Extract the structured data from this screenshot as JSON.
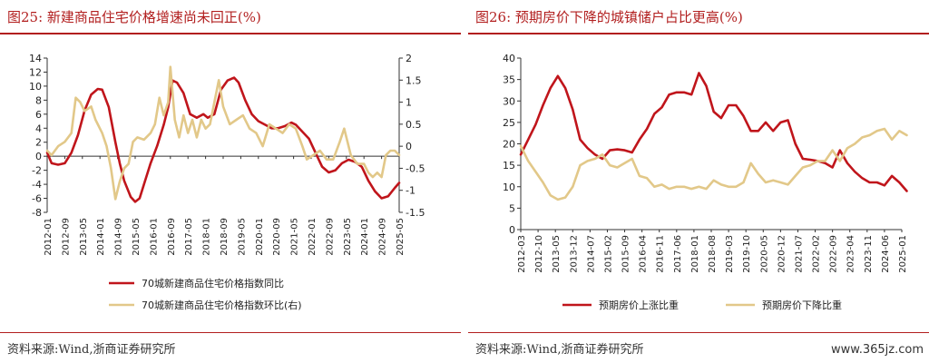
{
  "watermark": "www.365jz.com",
  "chart_data": [
    {
      "type": "line",
      "title": "图25:  新建商品住宅价格增速尚未回正(%)",
      "source": "资料来源:Wind,浙商证券研究所",
      "x": [
        "2012-01",
        "2012-09",
        "2013-05",
        "2014-01",
        "2014-09",
        "2015-05",
        "2016-01",
        "2016-09",
        "2017-05",
        "2018-01",
        "2018-09",
        "2019-05",
        "2020-01",
        "2020-09",
        "2021-05",
        "2022-01",
        "2022-09",
        "2023-05",
        "2024-01",
        "2024-09",
        "2025-05"
      ],
      "ylim_left": [
        -8,
        14
      ],
      "yticks_left": [
        "14",
        "12",
        "10",
        "8",
        "6",
        "4",
        "2",
        "0",
        "-2",
        "-4",
        "-6",
        "-8"
      ],
      "ylim_right": [
        -1.5,
        2
      ],
      "yticks_right": [
        "2",
        "1.5",
        "1",
        "0.5",
        "0",
        "-0.5",
        "-1",
        "-1.5"
      ],
      "colors": [
        "#c0151b",
        "#e2c889"
      ],
      "series": [
        {
          "name": "70城新建商品住宅价格指数同比",
          "axis": "left",
          "points": [
            [
              "2012-01",
              0.5
            ],
            [
              "2012-03",
              -1.0
            ],
            [
              "2012-06",
              -1.2
            ],
            [
              "2012-09",
              -1.0
            ],
            [
              "2012-12",
              0.5
            ],
            [
              "2013-03",
              3.0
            ],
            [
              "2013-06",
              6.5
            ],
            [
              "2013-09",
              8.8
            ],
            [
              "2013-12",
              9.6
            ],
            [
              "2014-02",
              9.5
            ],
            [
              "2014-05",
              7.0
            ],
            [
              "2014-08",
              2.0
            ],
            [
              "2014-10",
              -1.0
            ],
            [
              "2014-12",
              -3.5
            ],
            [
              "2015-03",
              -5.8
            ],
            [
              "2015-05",
              -6.5
            ],
            [
              "2015-07",
              -6.0
            ],
            [
              "2015-09",
              -4.0
            ],
            [
              "2015-12",
              -1.0
            ],
            [
              "2016-03",
              1.5
            ],
            [
              "2016-06",
              4.5
            ],
            [
              "2016-08",
              7.0
            ],
            [
              "2016-10",
              10.8
            ],
            [
              "2016-12",
              10.5
            ],
            [
              "2017-03",
              9.0
            ],
            [
              "2017-06",
              6.0
            ],
            [
              "2017-09",
              5.5
            ],
            [
              "2017-12",
              6.0
            ],
            [
              "2018-02",
              5.5
            ],
            [
              "2018-05",
              6.0
            ],
            [
              "2018-08",
              9.5
            ],
            [
              "2018-11",
              10.8
            ],
            [
              "2019-02",
              11.2
            ],
            [
              "2019-04",
              10.5
            ],
            [
              "2019-07",
              8.0
            ],
            [
              "2019-10",
              6.0
            ],
            [
              "2020-01",
              5.0
            ],
            [
              "2020-04",
              4.5
            ],
            [
              "2020-07",
              4.0
            ],
            [
              "2020-10",
              4.0
            ],
            [
              "2021-01",
              4.3
            ],
            [
              "2021-04",
              4.8
            ],
            [
              "2021-06",
              4.5
            ],
            [
              "2021-09",
              3.5
            ],
            [
              "2021-12",
              2.5
            ],
            [
              "2022-03",
              0.5
            ],
            [
              "2022-06",
              -1.5
            ],
            [
              "2022-09",
              -2.3
            ],
            [
              "2022-12",
              -2.0
            ],
            [
              "2023-03",
              -1.0
            ],
            [
              "2023-06",
              -0.5
            ],
            [
              "2023-09",
              -0.8
            ],
            [
              "2023-12",
              -1.5
            ],
            [
              "2024-03",
              -3.5
            ],
            [
              "2024-06",
              -5.0
            ],
            [
              "2024-09",
              -6.0
            ],
            [
              "2024-12",
              -5.7
            ],
            [
              "2025-03",
              -4.5
            ],
            [
              "2025-05",
              -3.8
            ]
          ]
        },
        {
          "name": "70城新建商品住宅价格指数环比(右)",
          "axis": "right",
          "points": [
            [
              "2012-01",
              -0.1
            ],
            [
              "2012-03",
              -0.2
            ],
            [
              "2012-06",
              0.0
            ],
            [
              "2012-09",
              0.1
            ],
            [
              "2012-12",
              0.3
            ],
            [
              "2013-02",
              1.1
            ],
            [
              "2013-04",
              1.0
            ],
            [
              "2013-06",
              0.8
            ],
            [
              "2013-09",
              0.9
            ],
            [
              "2013-11",
              0.6
            ],
            [
              "2014-02",
              0.3
            ],
            [
              "2014-04",
              0.0
            ],
            [
              "2014-06",
              -0.5
            ],
            [
              "2014-08",
              -1.2
            ],
            [
              "2014-10",
              -0.8
            ],
            [
              "2014-12",
              -0.5
            ],
            [
              "2015-02",
              -0.4
            ],
            [
              "2015-04",
              0.1
            ],
            [
              "2015-06",
              0.2
            ],
            [
              "2015-09",
              0.15
            ],
            [
              "2015-12",
              0.3
            ],
            [
              "2016-02",
              0.5
            ],
            [
              "2016-04",
              1.1
            ],
            [
              "2016-06",
              0.7
            ],
            [
              "2016-08",
              1.0
            ],
            [
              "2016-09",
              1.8
            ],
            [
              "2016-11",
              0.6
            ],
            [
              "2017-01",
              0.2
            ],
            [
              "2017-03",
              0.7
            ],
            [
              "2017-05",
              0.3
            ],
            [
              "2017-07",
              0.6
            ],
            [
              "2017-09",
              0.2
            ],
            [
              "2017-11",
              0.6
            ],
            [
              "2018-01",
              0.4
            ],
            [
              "2018-03",
              0.5
            ],
            [
              "2018-05",
              1.0
            ],
            [
              "2018-07",
              1.5
            ],
            [
              "2018-09",
              0.9
            ],
            [
              "2018-12",
              0.5
            ],
            [
              "2019-03",
              0.6
            ],
            [
              "2019-06",
              0.7
            ],
            [
              "2019-09",
              0.4
            ],
            [
              "2019-12",
              0.3
            ],
            [
              "2020-03",
              0.0
            ],
            [
              "2020-06",
              0.5
            ],
            [
              "2020-09",
              0.4
            ],
            [
              "2020-12",
              0.3
            ],
            [
              "2021-03",
              0.5
            ],
            [
              "2021-06",
              0.4
            ],
            [
              "2021-09",
              0.0
            ],
            [
              "2021-11",
              -0.3
            ],
            [
              "2022-02",
              -0.2
            ],
            [
              "2022-05",
              -0.1
            ],
            [
              "2022-08",
              -0.3
            ],
            [
              "2022-11",
              -0.3
            ],
            [
              "2023-02",
              0.1
            ],
            [
              "2023-04",
              0.4
            ],
            [
              "2023-07",
              -0.2
            ],
            [
              "2023-10",
              -0.4
            ],
            [
              "2024-01",
              -0.4
            ],
            [
              "2024-03",
              -0.6
            ],
            [
              "2024-05",
              -0.7
            ],
            [
              "2024-07",
              -0.6
            ],
            [
              "2024-09",
              -0.7
            ],
            [
              "2024-11",
              -0.2
            ],
            [
              "2025-01",
              -0.1
            ],
            [
              "2025-03",
              -0.1
            ],
            [
              "2025-05",
              -0.2
            ]
          ]
        }
      ]
    },
    {
      "type": "line",
      "title": "图26:  预期房价下降的城镇储户占比更高(%)",
      "source": "资料来源:Wind,浙商证券研究所",
      "x": [
        "2012-03",
        "2012-10",
        "2013-05",
        "2013-12",
        "2014-07",
        "2015-02",
        "2015-09",
        "2016-04",
        "2016-11",
        "2017-06",
        "2018-01",
        "2018-08",
        "2019-03",
        "2019-10",
        "2020-05",
        "2020-12",
        "2021-07",
        "2022-02",
        "2022-09",
        "2023-04",
        "2023-11",
        "2024-06",
        "2025-01"
      ],
      "ylim": [
        0,
        40
      ],
      "yticks": [
        "40",
        "35",
        "30",
        "25",
        "20",
        "15",
        "10",
        "5",
        "0"
      ],
      "colors": [
        "#c0151b",
        "#e2c889"
      ],
      "series": [
        {
          "name": "预期房价上涨比重",
          "points": [
            [
              "2012-03",
              17.5
            ],
            [
              "2012-06",
              21.0
            ],
            [
              "2012-09",
              24.5
            ],
            [
              "2012-12",
              29.0
            ],
            [
              "2013-03",
              33.0
            ],
            [
              "2013-06",
              35.8
            ],
            [
              "2013-09",
              33.0
            ],
            [
              "2013-12",
              28.0
            ],
            [
              "2014-03",
              21.0
            ],
            [
              "2014-06",
              19.0
            ],
            [
              "2014-09",
              17.5
            ],
            [
              "2014-12",
              16.5
            ],
            [
              "2015-03",
              18.5
            ],
            [
              "2015-06",
              18.7
            ],
            [
              "2015-09",
              18.5
            ],
            [
              "2015-12",
              18.0
            ],
            [
              "2016-03",
              21.0
            ],
            [
              "2016-06",
              23.5
            ],
            [
              "2016-09",
              27.0
            ],
            [
              "2016-12",
              28.5
            ],
            [
              "2017-03",
              31.5
            ],
            [
              "2017-06",
              32.0
            ],
            [
              "2017-09",
              32.0
            ],
            [
              "2017-12",
              31.5
            ],
            [
              "2018-03",
              36.5
            ],
            [
              "2018-06",
              33.5
            ],
            [
              "2018-09",
              27.5
            ],
            [
              "2018-12",
              26.0
            ],
            [
              "2019-03",
              29.0
            ],
            [
              "2019-06",
              29.0
            ],
            [
              "2019-09",
              26.5
            ],
            [
              "2019-12",
              23.0
            ],
            [
              "2020-03",
              23.0
            ],
            [
              "2020-06",
              25.0
            ],
            [
              "2020-09",
              23.0
            ],
            [
              "2020-12",
              25.0
            ],
            [
              "2021-03",
              25.5
            ],
            [
              "2021-06",
              20.0
            ],
            [
              "2021-09",
              16.5
            ],
            [
              "2021-12",
              16.3
            ],
            [
              "2022-03",
              16.0
            ],
            [
              "2022-06",
              15.5
            ],
            [
              "2022-09",
              14.5
            ],
            [
              "2022-12",
              18.5
            ],
            [
              "2023-03",
              15.5
            ],
            [
              "2023-06",
              13.5
            ],
            [
              "2023-09",
              12.0
            ],
            [
              "2023-12",
              11.0
            ],
            [
              "2024-03",
              11.0
            ],
            [
              "2024-06",
              10.3
            ],
            [
              "2024-09",
              12.5
            ],
            [
              "2024-12",
              11.0
            ],
            [
              "2025-03",
              9.0
            ]
          ]
        },
        {
          "name": "预期房价下降比重",
          "points": [
            [
              "2012-03",
              19.5
            ],
            [
              "2012-06",
              16.0
            ],
            [
              "2012-09",
              13.5
            ],
            [
              "2012-12",
              11.0
            ],
            [
              "2013-03",
              8.0
            ],
            [
              "2013-06",
              7.0
            ],
            [
              "2013-09",
              7.5
            ],
            [
              "2013-12",
              10.0
            ],
            [
              "2014-03",
              15.0
            ],
            [
              "2014-06",
              16.0
            ],
            [
              "2014-09",
              16.5
            ],
            [
              "2014-12",
              17.5
            ],
            [
              "2015-03",
              15.0
            ],
            [
              "2015-06",
              14.5
            ],
            [
              "2015-09",
              15.5
            ],
            [
              "2015-12",
              16.5
            ],
            [
              "2016-03",
              12.5
            ],
            [
              "2016-06",
              12.0
            ],
            [
              "2016-09",
              10.0
            ],
            [
              "2016-12",
              10.5
            ],
            [
              "2017-03",
              9.5
            ],
            [
              "2017-06",
              10.0
            ],
            [
              "2017-09",
              10.0
            ],
            [
              "2017-12",
              9.5
            ],
            [
              "2018-03",
              10.0
            ],
            [
              "2018-06",
              9.5
            ],
            [
              "2018-09",
              11.5
            ],
            [
              "2018-12",
              10.5
            ],
            [
              "2019-03",
              10.0
            ],
            [
              "2019-06",
              10.0
            ],
            [
              "2019-09",
              11.0
            ],
            [
              "2019-12",
              15.5
            ],
            [
              "2020-03",
              13.0
            ],
            [
              "2020-06",
              11.0
            ],
            [
              "2020-09",
              11.5
            ],
            [
              "2020-12",
              11.0
            ],
            [
              "2021-03",
              10.5
            ],
            [
              "2021-06",
              12.5
            ],
            [
              "2021-09",
              14.5
            ],
            [
              "2021-12",
              15.0
            ],
            [
              "2022-03",
              16.0
            ],
            [
              "2022-06",
              16.0
            ],
            [
              "2022-09",
              18.5
            ],
            [
              "2022-12",
              16.0
            ],
            [
              "2023-03",
              19.0
            ],
            [
              "2023-06",
              20.0
            ],
            [
              "2023-09",
              21.5
            ],
            [
              "2023-12",
              22.0
            ],
            [
              "2024-03",
              23.0
            ],
            [
              "2024-06",
              23.5
            ],
            [
              "2024-09",
              21.0
            ],
            [
              "2024-12",
              23.0
            ],
            [
              "2025-03",
              22.0
            ]
          ]
        }
      ]
    }
  ]
}
